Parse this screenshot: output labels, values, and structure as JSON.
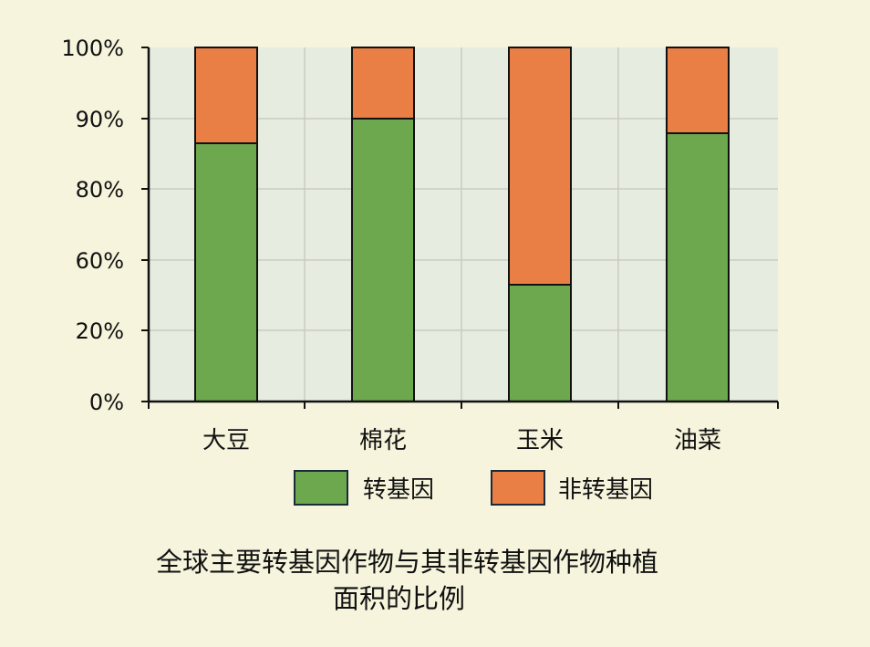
{
  "colors": {
    "background": "#f6f4dc",
    "plot_background": "#e6ecdf",
    "transgenic": "#6ea84e",
    "non_transgenic": "#e97f44",
    "gridline": "#c8cbc2",
    "axis": "#111111"
  },
  "title": {
    "line1": "全球主要转基因作物与其非转基因作物种植",
    "line2": "面积的比例"
  },
  "chart_data": {
    "type": "bar",
    "stacked": true,
    "categories": [
      "大豆",
      "棉花",
      "玉米",
      "油菜"
    ],
    "series": [
      {
        "name": "转基因",
        "values": [
          73,
          80,
          33,
          76
        ]
      },
      {
        "name": "非转基因",
        "values": [
          27,
          20,
          67,
          24
        ]
      }
    ],
    "y_ticks": [
      "0%",
      "20%",
      "60%",
      "80%",
      "90%",
      "100%"
    ],
    "ylim": [
      0,
      100
    ],
    "grid": true,
    "legend_position": "bottom"
  }
}
